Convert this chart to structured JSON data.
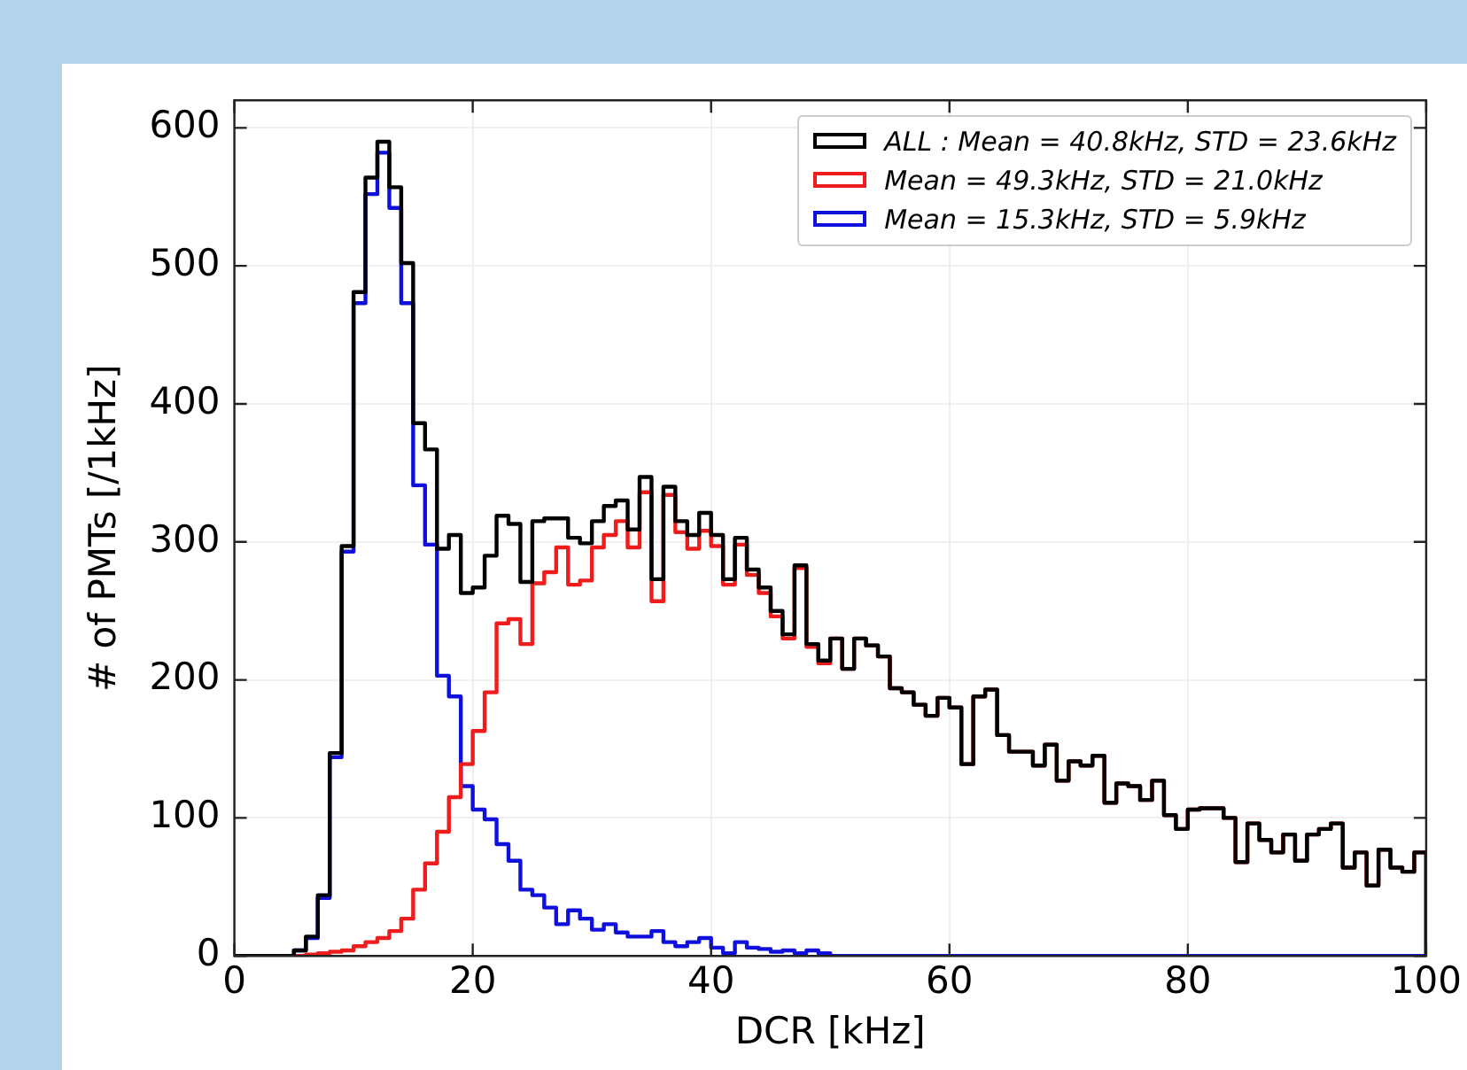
{
  "chart_data": {
    "type": "histogram",
    "xlabel": "DCR [kHz]",
    "ylabel": "# of PMTs [/1kHz]",
    "bins": [
      0,
      1,
      2,
      3,
      4,
      5,
      6,
      7,
      8,
      9,
      10,
      11,
      12,
      13,
      14,
      15,
      16,
      17,
      18,
      19,
      20,
      21,
      22,
      23,
      24,
      25,
      26,
      27,
      28,
      29,
      30,
      31,
      32,
      33,
      34,
      35,
      36,
      37,
      38,
      39,
      40,
      41,
      42,
      43,
      44,
      45,
      46,
      47,
      48,
      49,
      50,
      51,
      52,
      53,
      54,
      55,
      56,
      57,
      58,
      59,
      60,
      61,
      62,
      63,
      64,
      65,
      66,
      67,
      68,
      69,
      70,
      71,
      72,
      73,
      74,
      75,
      76,
      77,
      78,
      79,
      80,
      81,
      82,
      83,
      84,
      85,
      86,
      87,
      88,
      89,
      90,
      91,
      92,
      93,
      94,
      95,
      96,
      97,
      98,
      99,
      100
    ],
    "series": [
      {
        "name": "ALL : Mean = 40.8kHz, STD = 23.6kHz",
        "color": "#000000",
        "values": [
          0,
          0,
          0,
          0,
          0,
          4,
          14,
          44,
          147,
          297,
          481,
          564,
          590,
          557,
          502,
          386,
          367,
          295,
          305,
          263,
          267,
          290,
          319,
          313,
          271,
          315,
          317,
          317,
          303,
          299,
          315,
          326,
          330,
          309,
          347,
          273,
          340,
          315,
          305,
          321,
          305,
          273,
          303,
          280,
          267,
          250,
          233,
          283,
          226,
          214,
          230,
          208,
          230,
          225,
          217,
          194,
          191,
          182,
          174,
          187,
          180,
          139,
          188,
          193,
          160,
          148,
          148,
          138,
          153,
          127,
          141,
          138,
          145,
          111,
          125,
          123,
          113,
          127,
          102,
          92,
          106,
          107,
          107,
          100,
          68,
          96,
          84,
          75,
          88,
          69,
          88,
          92,
          96,
          64,
          75,
          51,
          77,
          64,
          61,
          75
        ]
      },
      {
        "name": "Mean = 49.3kHz, STD = 21.0kHz",
        "color": "#ee1c1c",
        "values": [
          0,
          0,
          0,
          0,
          0,
          0,
          1,
          2,
          3,
          4,
          7,
          10,
          13,
          18,
          27,
          48,
          67,
          90,
          115,
          139,
          163,
          191,
          241,
          244,
          226,
          270,
          278,
          296,
          269,
          272,
          296,
          305,
          315,
          296,
          336,
          257,
          334,
          307,
          295,
          308,
          297,
          269,
          298,
          276,
          263,
          246,
          230,
          281,
          224,
          212,
          230,
          208,
          230,
          225,
          217,
          194,
          191,
          182,
          174,
          187,
          180,
          139,
          188,
          193,
          160,
          148,
          148,
          138,
          153,
          127,
          141,
          138,
          145,
          111,
          125,
          123,
          113,
          127,
          102,
          92,
          106,
          107,
          107,
          100,
          68,
          96,
          84,
          75,
          88,
          69,
          88,
          92,
          96,
          64,
          75,
          51,
          77,
          64,
          61,
          75
        ]
      },
      {
        "name": "Mean = 15.3kHz, STD = 5.9kHz",
        "color": "#1010dd",
        "values": [
          0,
          0,
          0,
          0,
          0,
          4,
          13,
          42,
          144,
          293,
          473,
          552,
          582,
          542,
          473,
          341,
          298,
          203,
          188,
          123,
          106,
          99,
          81,
          69,
          48,
          44,
          35,
          23,
          33,
          27,
          19,
          23,
          17,
          14,
          14,
          18,
          10,
          7,
          10,
          13,
          6,
          2,
          10,
          6,
          5,
          3,
          4,
          2,
          4,
          2,
          0,
          0,
          0,
          0,
          0,
          0,
          0,
          0,
          0,
          0,
          0,
          0,
          0,
          0,
          0,
          0,
          0,
          0,
          0,
          0,
          0,
          0,
          0,
          0,
          0,
          0,
          0,
          0,
          0,
          0,
          0,
          0,
          0,
          0,
          0,
          0,
          0,
          0,
          0,
          0,
          0,
          0,
          0,
          0,
          0,
          0,
          0,
          0,
          0,
          0
        ]
      }
    ],
    "xlim": [
      0,
      100
    ],
    "xticks": [
      0,
      20,
      40,
      60,
      80,
      100
    ],
    "ylim": [
      0,
      620
    ],
    "yticks": [
      0,
      100,
      200,
      300,
      400,
      500,
      600
    ],
    "grid": true,
    "legend": "top right"
  }
}
